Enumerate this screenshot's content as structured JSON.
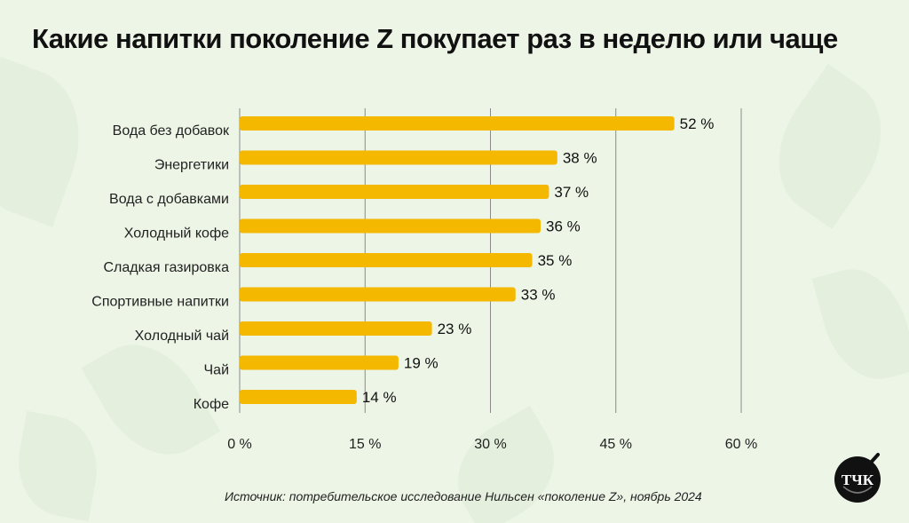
{
  "title": "Какие напитки поколение Z покупает раз в неделю или чаще",
  "source": "Источник: потребительское исследование Нильсен «поколение Z», ноябрь 2024",
  "logo": {
    "text": "ТЧК",
    "icon": "cup-logo-icon"
  },
  "colors": {
    "bar": "#f5b800",
    "background": "#ecf5e6",
    "grid": "#8a8a8a",
    "logo": "#111111"
  },
  "chart_data": {
    "type": "bar",
    "orientation": "horizontal",
    "title": "Какие напитки поколение Z покупает раз в неделю или чаще",
    "xlabel": "",
    "ylabel": "",
    "categories": [
      "Вода без добавок",
      "Энергетики",
      "Вода с добавками",
      "Холодный кофе",
      "Сладкая газировка",
      "Спортивные напитки",
      "Холодный чай",
      "Чай",
      "Кофе"
    ],
    "values": [
      52,
      38,
      37,
      36,
      35,
      33,
      23,
      19,
      14
    ],
    "data_labels": [
      "52 %",
      "38 %",
      "37 %",
      "36 %",
      "35 %",
      "33 %",
      "23 %",
      "19 %",
      "14 %"
    ],
    "xlim": [
      0,
      60
    ],
    "ticks": [
      0,
      15,
      30,
      45,
      60
    ],
    "tick_labels": [
      "0 %",
      "15 %",
      "30 %",
      "45 %",
      "60 %"
    ],
    "grid": true,
    "legend": "none"
  }
}
